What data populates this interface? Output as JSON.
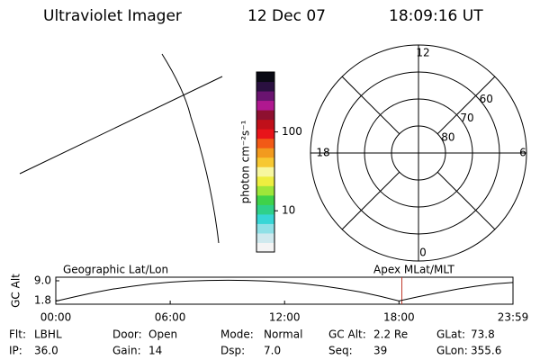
{
  "header": {
    "title": "Ultraviolet Imager",
    "date": "12 Dec 07",
    "time": "18:09:16 UT"
  },
  "chart_data": [
    {
      "type": "colorbar",
      "label": "photon cm⁻²s⁻¹",
      "log": true,
      "colors": [
        "#f4f4f4",
        "#cfe9ee",
        "#8fe0e6",
        "#37d6d6",
        "#2fd08a",
        "#3fd24a",
        "#9ee63a",
        "#eeee40",
        "#f7f7a0",
        "#f7c832",
        "#f29a1e",
        "#f25a16",
        "#e8141a",
        "#c0101a",
        "#8e1030",
        "#b01890",
        "#6a1470",
        "#2a1040",
        "#0a0a14"
      ],
      "ylim": [
        3,
        575
      ],
      "yticks": [
        10,
        100
      ]
    },
    {
      "type": "polar",
      "rlim": [
        90,
        50
      ],
      "rticks": [
        60,
        70,
        80
      ],
      "thetalim": [
        0,
        24
      ],
      "thetaticks": [
        12,
        6,
        0,
        18
      ]
    },
    {
      "type": "line",
      "ylabel": "GC Alt",
      "annotations": [
        "Geographic Lat/Lon",
        "Apex MLat/MLT"
      ],
      "x": [
        0,
        1,
        2,
        3,
        4,
        5,
        6,
        7,
        8,
        9,
        10,
        11,
        12,
        13,
        14,
        15,
        16,
        17,
        18,
        19,
        20,
        21,
        22,
        23,
        23.98
      ],
      "series": [
        {
          "color": "#000000",
          "values": [
            1.6,
            3.2,
            4.7,
            6.0,
            7.0,
            7.9,
            8.5,
            8.9,
            9.1,
            9.2,
            9.1,
            8.9,
            8.5,
            7.9,
            7.1,
            6.1,
            4.9,
            3.4,
            1.7,
            3.2,
            4.6,
            5.9,
            7.0,
            7.9,
            8.4
          ]
        }
      ],
      "marker": {
        "x": 18.15,
        "color": "#c0392b"
      },
      "xlim": [
        0,
        23.98
      ],
      "xticks": [
        {
          "value": 0,
          "label": "00:00"
        },
        {
          "value": 6,
          "label": "06:00"
        },
        {
          "value": 12,
          "label": "12:00"
        },
        {
          "value": 18,
          "label": "18:00"
        },
        {
          "value": 23.98,
          "label": "23:59"
        }
      ],
      "ylim": [
        0.5,
        10.3
      ],
      "yticks": [
        1.8,
        {
          "value": 9,
          "label": "9.0"
        }
      ]
    }
  ],
  "info": [
    [
      {
        "label": "Flt:",
        "value": "LBHL"
      },
      {
        "label": "IP:",
        "value": "36.0"
      }
    ],
    [
      {
        "label": "Door:",
        "value": "Open"
      },
      {
        "label": "Gain:",
        "value": "14"
      }
    ],
    [
      {
        "label": "Mode:",
        "value": "Normal"
      },
      {
        "label": "Dsp:",
        "value": "7.0"
      }
    ],
    [
      {
        "label": "GC Alt:",
        "value": "2.2 Re"
      },
      {
        "label": "Seq:",
        "value": "39"
      }
    ],
    [
      {
        "label": "GLat:",
        "value": "73.8"
      },
      {
        "label": "GLon:",
        "value": "355.6"
      }
    ]
  ]
}
